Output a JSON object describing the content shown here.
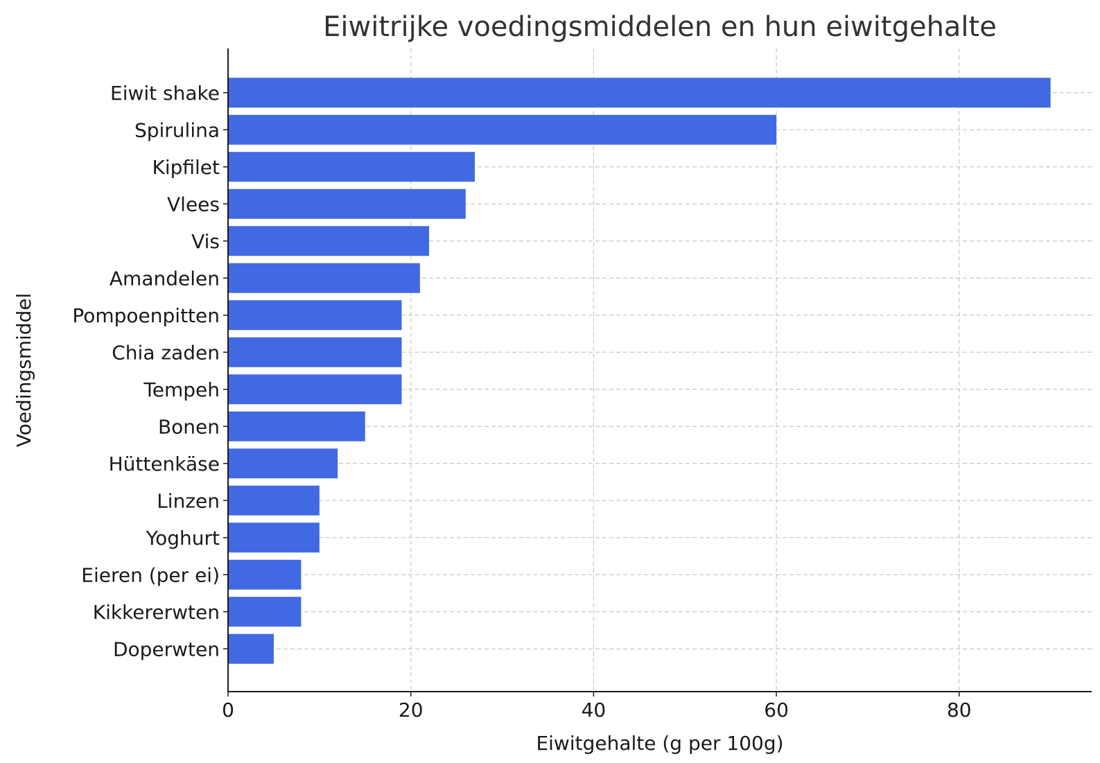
{
  "chart_data": {
    "type": "bar",
    "orientation": "horizontal",
    "title": "Eiwitrijke voedingsmiddelen en hun eiwitgehalte",
    "xlabel": "Eiwitgehalte (g per 100g)",
    "ylabel": "Voedingsmiddel",
    "categories": [
      "Eiwit shake",
      "Spirulina",
      "Kipfilet",
      "Vlees",
      "Vis",
      "Amandelen",
      "Pompoenpitten",
      "Chia zaden",
      "Tempeh",
      "Bonen",
      "Hüttenkäse",
      "Linzen",
      "Yoghurt",
      "Eieren (per ei)",
      "Kikkererwten",
      "Doperwten"
    ],
    "values": [
      90,
      60,
      27,
      26,
      22,
      21,
      19,
      19,
      19,
      15,
      12,
      10,
      10,
      8,
      8,
      5
    ],
    "xlim": [
      0,
      94.5
    ],
    "xticks": [
      0,
      20,
      40,
      60,
      80
    ],
    "bar_color": "#4169e1",
    "grid": true
  }
}
